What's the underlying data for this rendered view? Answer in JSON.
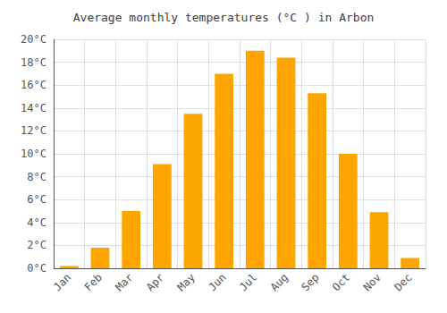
{
  "chart_data": {
    "type": "bar",
    "title": "Average monthly temperatures (°C ) in Arbon",
    "categories": [
      "Jan",
      "Feb",
      "Mar",
      "Apr",
      "May",
      "Jun",
      "Jul",
      "Aug",
      "Sep",
      "Oct",
      "Nov",
      "Dec"
    ],
    "values": [
      0.2,
      1.8,
      5.0,
      9.1,
      13.5,
      17.0,
      19.0,
      18.4,
      15.3,
      10.0,
      4.9,
      0.9
    ],
    "color": "#FFA500",
    "ylim": [
      0,
      20
    ],
    "yticks": [
      {
        "value": 0,
        "label": "0°C"
      },
      {
        "value": 2,
        "label": "2°C"
      },
      {
        "value": 4,
        "label": "4°C"
      },
      {
        "value": 6,
        "label": "6°C"
      },
      {
        "value": 8,
        "label": "8°C"
      },
      {
        "value": 10,
        "label": "10°C"
      },
      {
        "value": 12,
        "label": "12°C"
      },
      {
        "value": 14,
        "label": "14°C"
      },
      {
        "value": 16,
        "label": "16°C"
      },
      {
        "value": 18,
        "label": "18°C"
      },
      {
        "value": 20,
        "label": "20°C"
      }
    ],
    "grid": true
  }
}
